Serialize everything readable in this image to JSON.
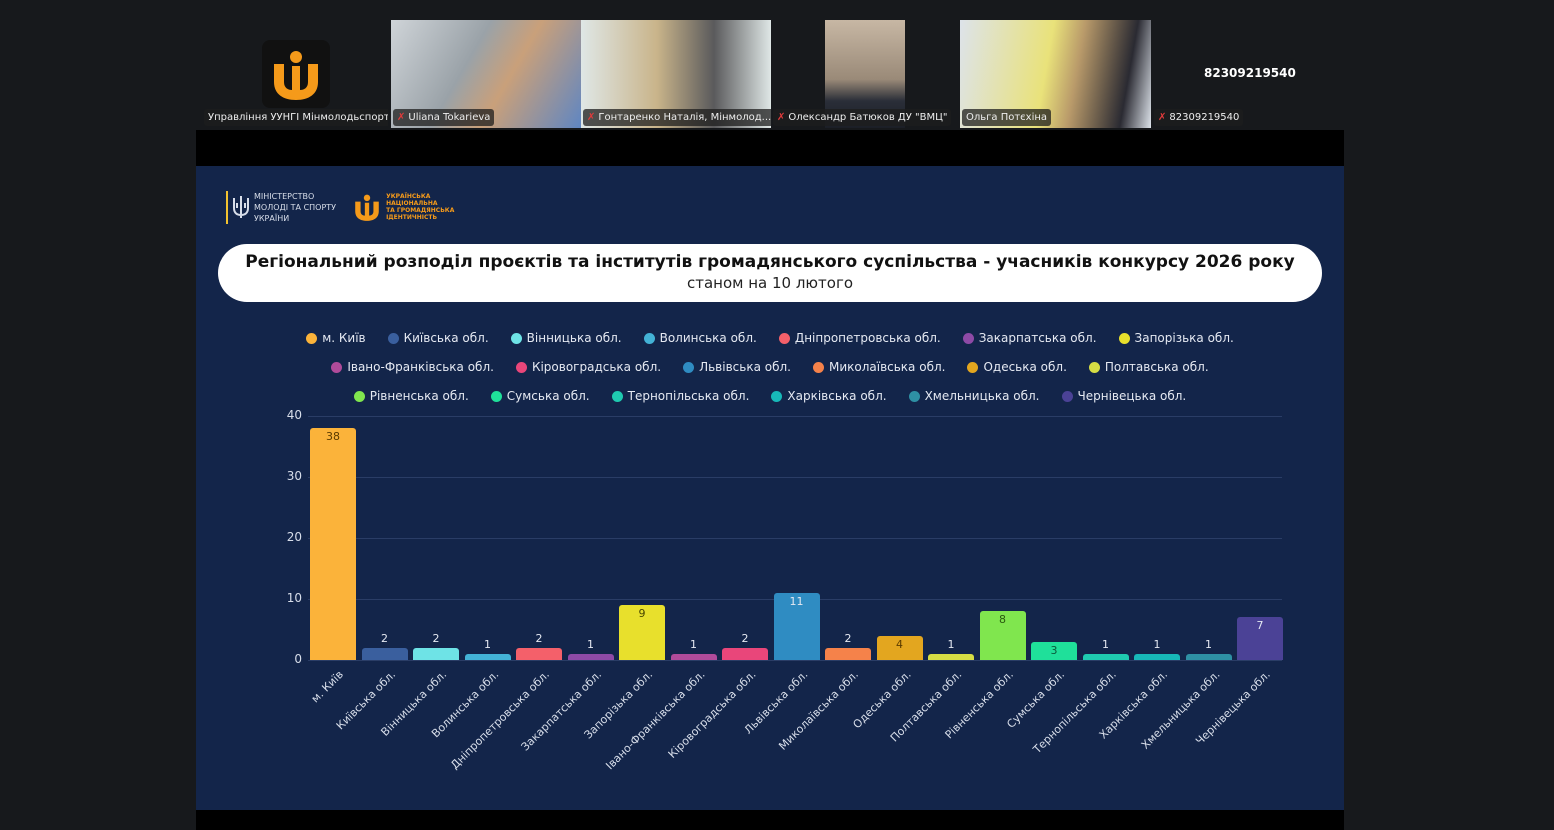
{
  "meeting": {
    "participants": [
      {
        "name": "Управління УУНГІ Мінмолодьспорт",
        "muted": false,
        "type": "logo"
      },
      {
        "name": "Uliana Tokarieva",
        "muted": true,
        "type": "video"
      },
      {
        "name": "Гонтаренко Наталія, Мінмолод...",
        "muted": true,
        "type": "video"
      },
      {
        "name": "Олександр Батюков ДУ \"ВМЦ\"",
        "muted": true,
        "type": "video"
      },
      {
        "name": "Ольга Потєхіна",
        "muted": false,
        "type": "video",
        "active_speaker": true
      },
      {
        "name": "82309219540",
        "muted": true,
        "type": "phone"
      }
    ],
    "phone_display": "82309219540"
  },
  "slide": {
    "ministry_logo_text": [
      "МІНІСТЕРСТВО",
      "МОЛОДІ ТА СПОРТУ",
      "УКРАЇНИ"
    ],
    "uni_logo_text": [
      "УКРАЇНСЬКА",
      "НАЦІОНАЛЬНА",
      "ТА ГРОМАДЯНСЬКА",
      "ІДЕНТИЧНІСТЬ"
    ],
    "title": "Регіональний розподіл проєктів та інститутів громадянського суспільства - учасників конкурсу 2026 року",
    "subtitle": "станом на 10 лютого"
  },
  "chart_data": {
    "type": "bar",
    "title": "Регіональний розподіл проєктів та інститутів громадянського суспільства - учасників конкурсу 2026 року",
    "subtitle": "станом на 10 лютого",
    "xlabel": "",
    "ylabel": "",
    "ylim": [
      0,
      40
    ],
    "yticks": [
      0,
      10,
      20,
      30,
      40
    ],
    "grid": true,
    "legend_position": "top",
    "categories": [
      "м. Київ",
      "Київська обл.",
      "Вінницька обл.",
      "Волинська обл.",
      "Дніпропетровська обл.",
      "Закарпатська обл.",
      "Запорізька обл.",
      "Івано-Франківська обл.",
      "Кіровоградська обл.",
      "Львівська обл.",
      "Миколаївська обл.",
      "Одеська обл.",
      "Полтавська обл.",
      "Рівненська обл.",
      "Сумська обл.",
      "Тернопільська обл.",
      "Харківська обл.",
      "Хмельницька обл.",
      "Чернівецька обл."
    ],
    "values": [
      38,
      2,
      2,
      1,
      2,
      1,
      9,
      1,
      2,
      11,
      2,
      4,
      1,
      8,
      3,
      1,
      1,
      1,
      7
    ],
    "colors": [
      "#fbb33a",
      "#3a5f9e",
      "#6ee3e6",
      "#43b2d6",
      "#f4606a",
      "#8e4aa6",
      "#e8e02c",
      "#b04b9a",
      "#e9467a",
      "#2f8cc2",
      "#f5824a",
      "#e3a61f",
      "#d6dd44",
      "#80e64e",
      "#1fe09a",
      "#1fcab0",
      "#17b8b8",
      "#2e90a4",
      "#4b4296"
    ],
    "label_colors": [
      "#5a3b00",
      "#e5e9f2",
      "#e5e9f2",
      "#e5e9f2",
      "#e5e9f2",
      "#e5e9f2",
      "#4a4700",
      "#e5e9f2",
      "#e5e9f2",
      "#e5e9f2",
      "#e5e9f2",
      "#5a3b00",
      "#e5e9f2",
      "#2a5a10",
      "#0b5a3b",
      "#e5e9f2",
      "#e5e9f2",
      "#e5e9f2",
      "#e5e9f2"
    ]
  }
}
